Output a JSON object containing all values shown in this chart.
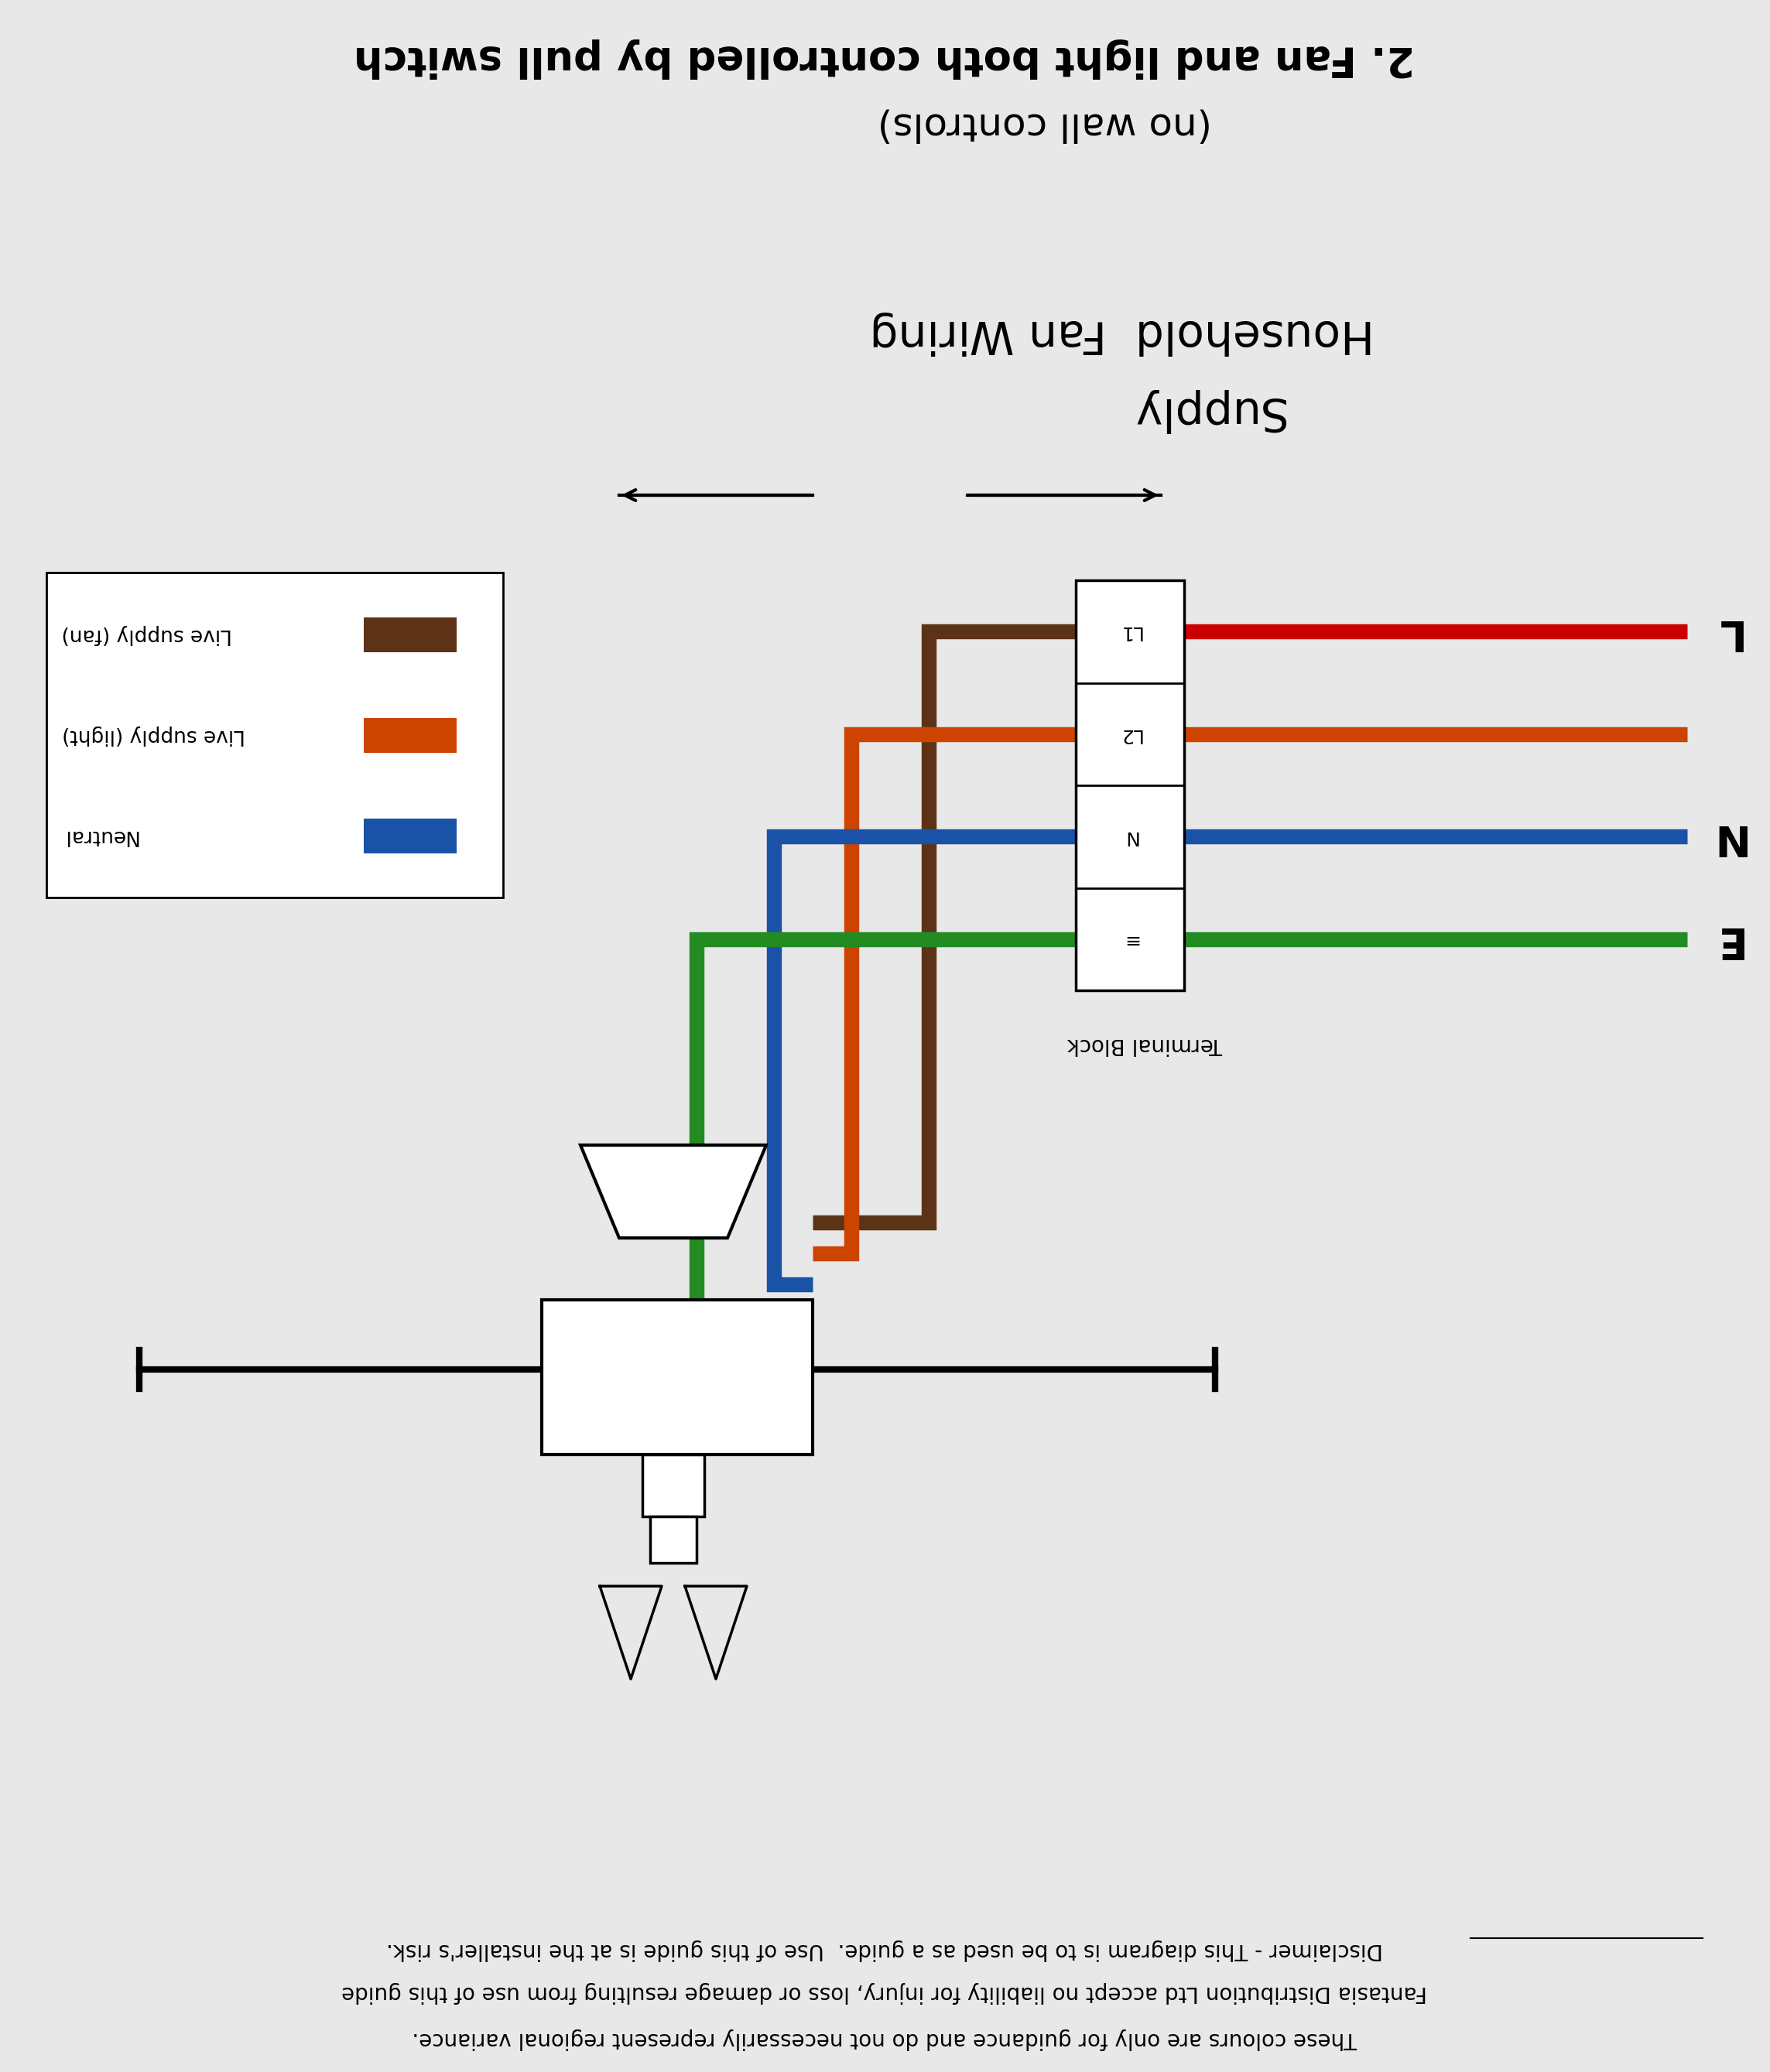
{
  "bg_color": "#e8e8e8",
  "title_line1": "2. Fan and light both controlled by pull switch",
  "title_line2": "(no wall controls)",
  "label_household": "Household  Fan Wiring",
  "label_supply": "Supply",
  "label_L": "L",
  "label_N": "N",
  "label_E": "E",
  "label_L1": "L1",
  "label_L2": "L2",
  "label_N_block": "N",
  "label_E_block": "≡",
  "label_terminal": "Terminal Block",
  "legend_items": [
    {
      "label": "Live supply (fan)",
      "color": "#5C3317"
    },
    {
      "label": "Live supply (light)",
      "color": "#CC4400"
    },
    {
      "label": "Neutral",
      "color": "#1a52a8"
    }
  ],
  "wire_colors": {
    "brown": "#5C3317",
    "orange": "#CC4400",
    "blue": "#1a52a8",
    "green": "#228B22",
    "red": "#CC0000"
  },
  "disclaimer_line1": "Disclaimer - This diagram is to be used as a guide.  Use of this guide is at the installer's risk.",
  "disclaimer_line2": "Fantasia Distribution Ltd accept no liability for injury, loss or damage resulting from use of this guide",
  "disclaimer_line3": "These colours are only for guidance and do not necessarily represent regional variance."
}
